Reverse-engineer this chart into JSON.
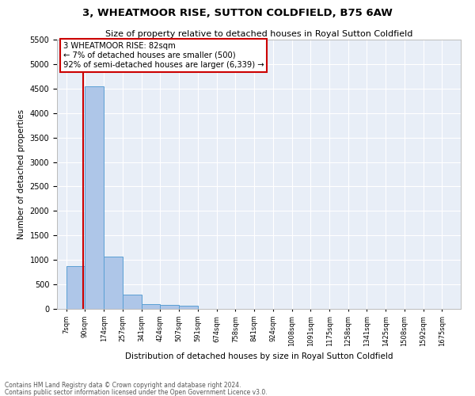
{
  "title": "3, WHEATMOOR RISE, SUTTON COLDFIELD, B75 6AW",
  "subtitle": "Size of property relative to detached houses in Royal Sutton Coldfield",
  "xlabel": "Distribution of detached houses by size in Royal Sutton Coldfield",
  "ylabel": "Number of detached properties",
  "bar_color": "#aec6e8",
  "bar_edge_color": "#5a9fd4",
  "bar_labels": [
    "7sqm",
    "90sqm",
    "174sqm",
    "257sqm",
    "341sqm",
    "424sqm",
    "507sqm",
    "591sqm",
    "674sqm",
    "758sqm",
    "841sqm",
    "924sqm",
    "1008sqm",
    "1091sqm",
    "1175sqm",
    "1258sqm",
    "1341sqm",
    "1425sqm",
    "1508sqm",
    "1592sqm",
    "1675sqm"
  ],
  "bar_values": [
    880,
    4550,
    1060,
    290,
    90,
    80,
    60,
    0,
    0,
    0,
    0,
    0,
    0,
    0,
    0,
    0,
    0,
    0,
    0,
    0,
    0
  ],
  "bin_edges": [
    7,
    90,
    174,
    257,
    341,
    424,
    507,
    591,
    674,
    758,
    841,
    924,
    1008,
    1091,
    1175,
    1258,
    1341,
    1425,
    1508,
    1592,
    1675
  ],
  "ylim": [
    0,
    5500
  ],
  "yticks": [
    0,
    500,
    1000,
    1500,
    2000,
    2500,
    3000,
    3500,
    4000,
    4500,
    5000,
    5500
  ],
  "vline_x": 82,
  "vline_color": "#cc0000",
  "annotation_text": "3 WHEATMOOR RISE: 82sqm\n← 7% of detached houses are smaller (500)\n92% of semi-detached houses are larger (6,339) →",
  "annotation_box_color": "#ffffff",
  "annotation_box_edge": "#cc0000",
  "background_color": "#e8eef7",
  "footer1": "Contains HM Land Registry data © Crown copyright and database right 2024.",
  "footer2": "Contains public sector information licensed under the Open Government Licence v3.0."
}
